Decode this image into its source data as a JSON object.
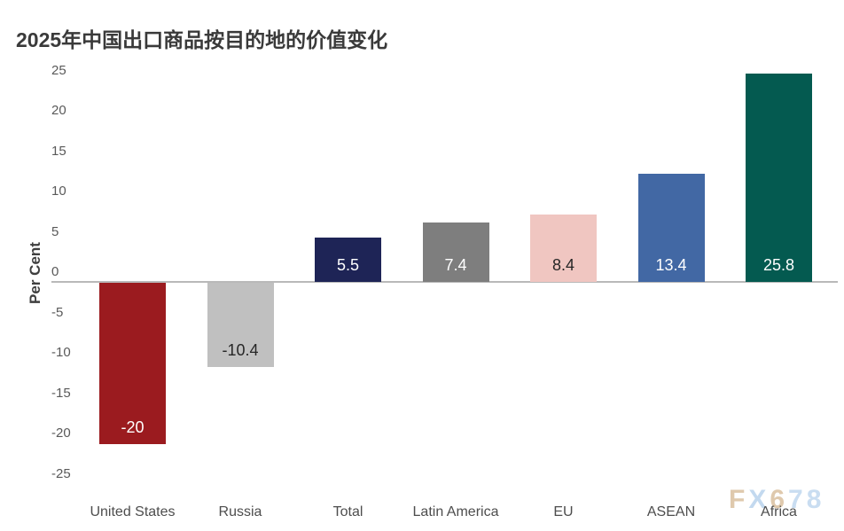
{
  "header": {
    "title": "2025年中国出口商品按目的地的价值变化",
    "title_color": "#3A3A3A"
  },
  "chart_data": {
    "type": "bar",
    "title": "2025年中国出口商品按目的地的价值变化",
    "xlabel": "",
    "ylabel": "Per Cent",
    "categories": [
      "United States",
      "Russia",
      "Total",
      "Latin America",
      "EU",
      "ASEAN",
      "Africa"
    ],
    "values": [
      -20,
      -10.4,
      5.5,
      7.4,
      8.4,
      13.4,
      25.8
    ],
    "value_labels": [
      "-20",
      "-10.4",
      "5.5",
      "7.4",
      "8.4",
      "13.4",
      "25.8"
    ],
    "bar_colors": [
      "#9B1B1F",
      "#C0C0C0",
      "#1E2456",
      "#7E7E7E",
      "#F0C6C1",
      "#4268A4",
      "#045A50"
    ],
    "value_label_colors": [
      "#FFFFFF",
      "#262626",
      "#FFFFFF",
      "#FFFFFF",
      "#262626",
      "#FFFFFF",
      "#FFFFFF"
    ],
    "ylim": [
      -25,
      25
    ],
    "y_ticks": [
      25,
      20,
      15,
      10,
      5,
      0,
      -5,
      -10,
      -15,
      -20,
      -25
    ],
    "grid": false,
    "legend": false,
    "axis_line_color": "#B9B9B9",
    "tick_label_color": "#595959",
    "category_label_color": "#4D4D4D",
    "ylabel_color": "#3F3F3F",
    "background_color": "#FFFFFF"
  },
  "watermark": {
    "text": "FX678",
    "letters": [
      {
        "char": "F",
        "color": "#DFC9AD"
      },
      {
        "char": "X",
        "color": "#C3D9EF"
      },
      {
        "char": "6",
        "color": "#DFC9AD"
      },
      {
        "char": "7",
        "color": "#C9DDF1"
      },
      {
        "char": "8",
        "color": "#C9DDF1"
      }
    ]
  }
}
